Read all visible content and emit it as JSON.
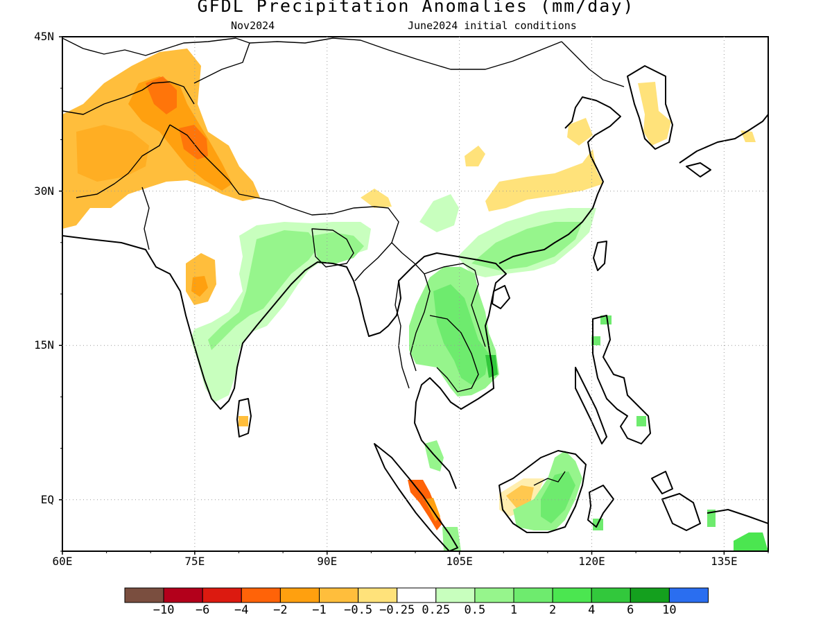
{
  "title": "GFDL Precipitation Anomalies (mm/day)",
  "subtitle_left": "Nov2024",
  "subtitle_right": "June2024 initial conditions",
  "lat_labels": [
    "45N",
    "30N",
    "15N",
    "EQ"
  ],
  "lon_labels": [
    "60E",
    "75E",
    "90E",
    "105E",
    "120E",
    "135E"
  ],
  "colorbar": {
    "colors": [
      "#7a4e3f",
      "#b3001b",
      "#dc1a10",
      "#ff6308",
      "#ffa00f",
      "#ffbe3c",
      "#ffe27a",
      "#ffffff",
      "#c8ffbe",
      "#96f58c",
      "#6eeb6e",
      "#4be650",
      "#32c83c",
      "#14a01e",
      "#2a6ef0"
    ],
    "labels": [
      "-10",
      "-6",
      "-4",
      "-2",
      "-1",
      "-0.5",
      "-0.25",
      "0.25",
      "0.5",
      "1",
      "2",
      "4",
      "6",
      "10"
    ]
  },
  "map": {
    "extent": {
      "lon": [
        60,
        140
      ],
      "lat": [
        -5,
        45
      ]
    },
    "anomaly_regions": [
      {
        "name": "pakistan-afghanistan-dry",
        "level": "-0.5"
      },
      {
        "name": "tajikistan-dry",
        "level": "-1"
      },
      {
        "name": "central-india-dry",
        "level": "-0.5"
      },
      {
        "name": "yangtze-dry",
        "level": "-0.25"
      },
      {
        "name": "india-wet",
        "level": "0.5"
      },
      {
        "name": "bangladesh-wet",
        "level": "0.5"
      },
      {
        "name": "indochina-wet",
        "level": "1"
      },
      {
        "name": "south-china-wet",
        "level": "1"
      },
      {
        "name": "borneo-wet",
        "level": "1"
      },
      {
        "name": "sumatra-dry",
        "level": "-2"
      }
    ]
  }
}
